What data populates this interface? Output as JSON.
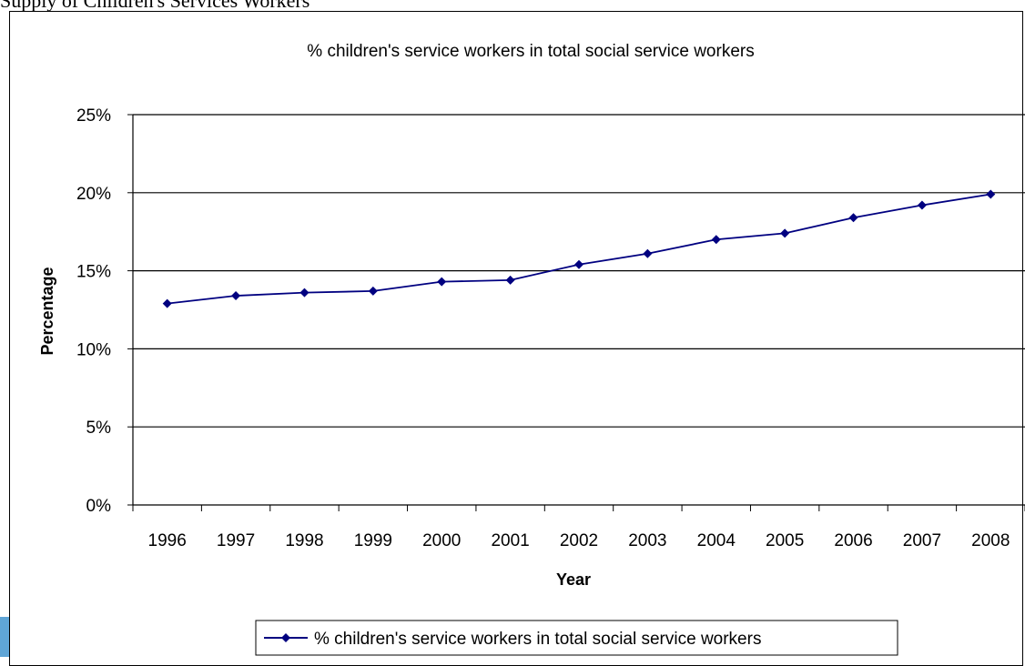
{
  "caption": "Supply of Children's Services Workers",
  "colors": {
    "series": "#000080",
    "grid": "#000000",
    "side_tab": "#5fa5d6"
  },
  "chart_data": {
    "type": "line",
    "title": "% children's service workers in total social service workers",
    "xlabel": "Year",
    "ylabel": "Percentage",
    "ylim": [
      0,
      25
    ],
    "y_ticks": [
      "0%",
      "5%",
      "10%",
      "15%",
      "20%",
      "25%"
    ],
    "grid": "horizontal",
    "legend_position": "bottom",
    "categories": [
      "1996",
      "1997",
      "1998",
      "1999",
      "2000",
      "2001",
      "2002",
      "2003",
      "2004",
      "2005",
      "2006",
      "2007",
      "2008"
    ],
    "series": [
      {
        "name": "% children's service workers in total social service workers",
        "marker": "diamond",
        "values": [
          12.9,
          13.4,
          13.6,
          13.7,
          14.3,
          14.4,
          15.4,
          16.1,
          17.0,
          17.4,
          18.4,
          19.2,
          19.9
        ]
      }
    ]
  }
}
